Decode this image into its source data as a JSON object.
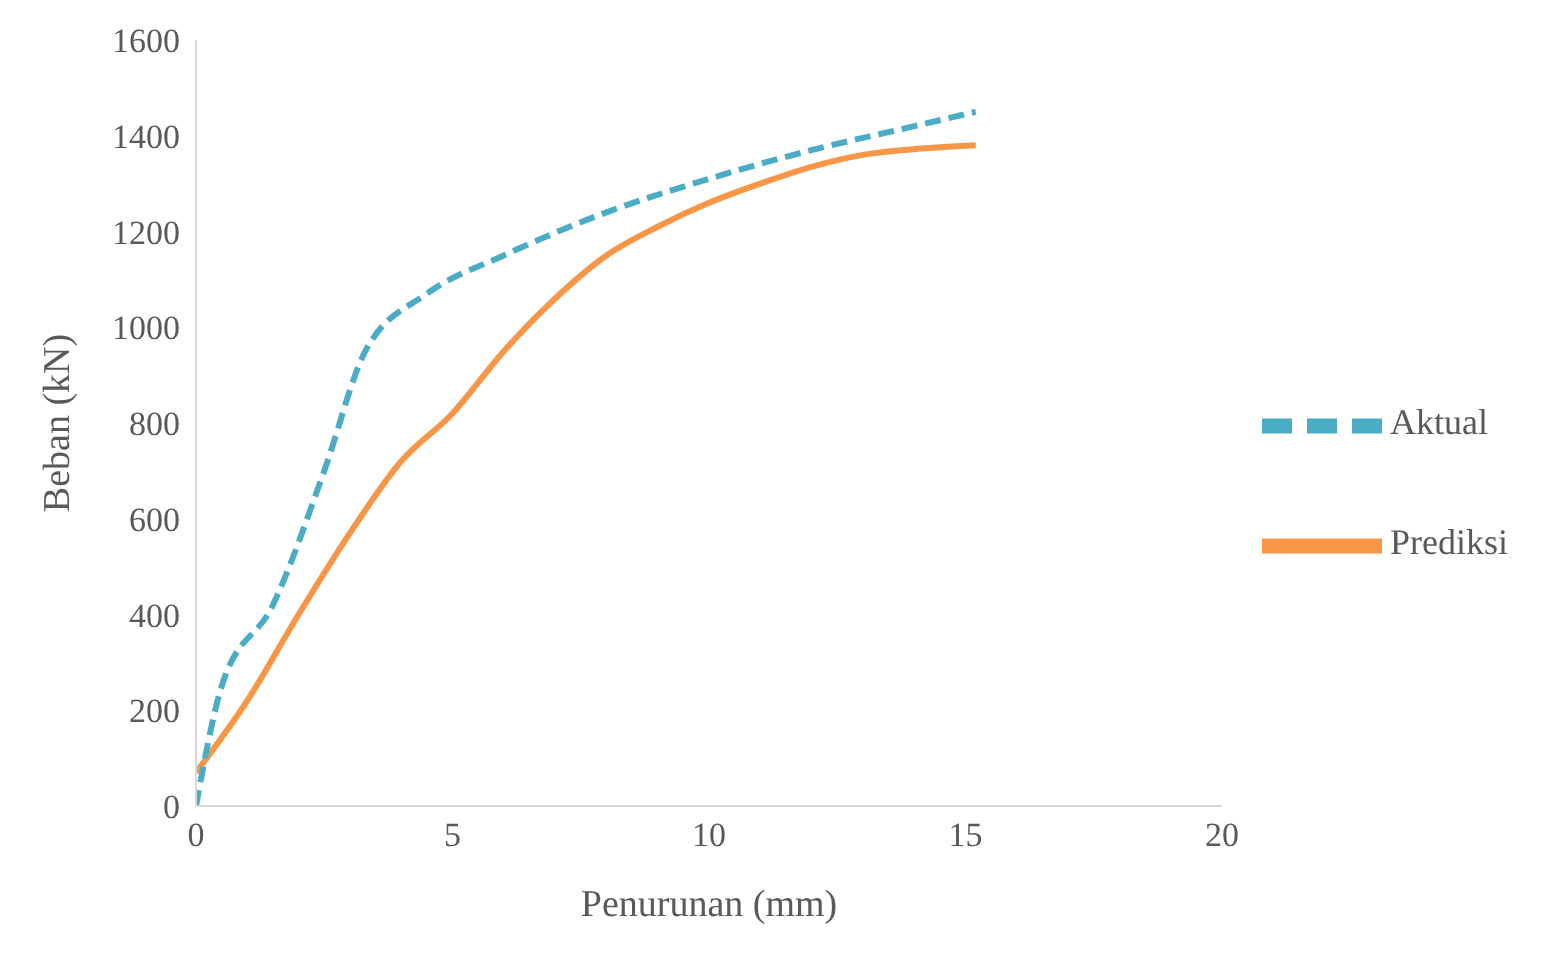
{
  "chart_data": {
    "type": "line",
    "xlabel": "Penurunan (mm)",
    "ylabel": "Beban (kN)",
    "xlim": [
      0,
      20
    ],
    "xticks": [
      0,
      5,
      10,
      15,
      20
    ],
    "ylim": [
      0,
      1600
    ],
    "yticks": [
      0,
      200,
      400,
      600,
      800,
      1000,
      1200,
      1400,
      1600
    ],
    "grid": false,
    "legend": "right",
    "marker": "none",
    "series": [
      {
        "name": "Prediksi",
        "color": "#f79646",
        "line_style": "solid",
        "x": [
          0,
          1,
          2,
          3,
          4,
          5,
          6,
          7,
          8,
          9,
          10,
          11,
          12,
          13,
          14,
          15.2
        ],
        "values": [
          70,
          220,
          400,
          570,
          720,
          820,
          950,
          1060,
          1150,
          1210,
          1260,
          1300,
          1335,
          1360,
          1372,
          1380
        ]
      },
      {
        "name": "Aktual",
        "color": "#4bacc6",
        "line_style": "dashed",
        "x": [
          0,
          0.5,
          1.5,
          2.5,
          3.3,
          4.5,
          6,
          8,
          10,
          12,
          14,
          15.2
        ],
        "values": [
          0,
          250,
          420,
          700,
          950,
          1070,
          1150,
          1240,
          1310,
          1370,
          1420,
          1450
        ]
      }
    ]
  }
}
